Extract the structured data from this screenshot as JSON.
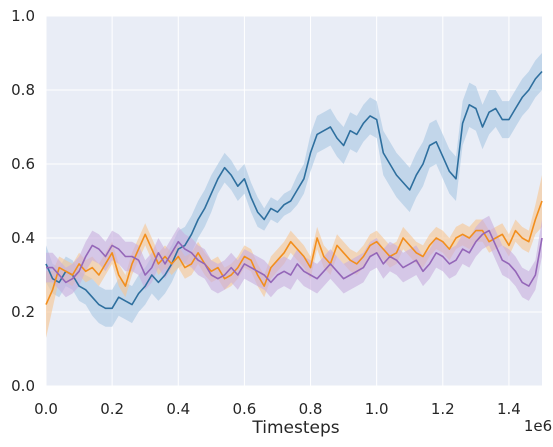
{
  "chart_data": {
    "type": "line",
    "title": "",
    "xlabel": "Timesteps",
    "ylabel": "",
    "x_offset_label": "1e6",
    "xlim": [
      0.0,
      1.5
    ],
    "ylim": [
      0.0,
      1.0
    ],
    "x_ticks": [
      "0.0",
      "0.2",
      "0.4",
      "0.6",
      "0.8",
      "1.0",
      "1.2",
      "1.4"
    ],
    "y_ticks": [
      "0.0",
      "0.2",
      "0.4",
      "0.6",
      "0.8",
      "1.0"
    ],
    "grid": true,
    "background_color": "#e9edf6",
    "grid_color": "#ffffff",
    "legend": "none",
    "series": [
      {
        "color": "#2e6f9e",
        "band_color": "#a9c6e2",
        "x": [
          0.0,
          0.02,
          0.04,
          0.06,
          0.08,
          0.1,
          0.12,
          0.14,
          0.16,
          0.18,
          0.2,
          0.22,
          0.24,
          0.26,
          0.28,
          0.3,
          0.32,
          0.34,
          0.36,
          0.38,
          0.4,
          0.42,
          0.44,
          0.46,
          0.48,
          0.5,
          0.52,
          0.54,
          0.56,
          0.58,
          0.6,
          0.62,
          0.64,
          0.66,
          0.68,
          0.7,
          0.72,
          0.74,
          0.76,
          0.78,
          0.8,
          0.82,
          0.84,
          0.86,
          0.88,
          0.9,
          0.92,
          0.94,
          0.96,
          0.98,
          1.0,
          1.02,
          1.04,
          1.06,
          1.08,
          1.1,
          1.12,
          1.14,
          1.16,
          1.18,
          1.2,
          1.22,
          1.24,
          1.26,
          1.28,
          1.3,
          1.32,
          1.34,
          1.36,
          1.38,
          1.4,
          1.42,
          1.44,
          1.46,
          1.48,
          1.5
        ],
        "y": [
          0.33,
          0.29,
          0.28,
          0.31,
          0.3,
          0.27,
          0.26,
          0.24,
          0.22,
          0.21,
          0.21,
          0.24,
          0.23,
          0.22,
          0.25,
          0.27,
          0.3,
          0.28,
          0.3,
          0.33,
          0.37,
          0.38,
          0.41,
          0.45,
          0.48,
          0.52,
          0.56,
          0.59,
          0.57,
          0.54,
          0.56,
          0.51,
          0.47,
          0.45,
          0.48,
          0.47,
          0.49,
          0.5,
          0.53,
          0.56,
          0.63,
          0.68,
          0.69,
          0.7,
          0.67,
          0.65,
          0.69,
          0.68,
          0.71,
          0.73,
          0.72,
          0.63,
          0.6,
          0.57,
          0.55,
          0.53,
          0.57,
          0.6,
          0.65,
          0.66,
          0.62,
          0.58,
          0.56,
          0.71,
          0.76,
          0.75,
          0.7,
          0.74,
          0.75,
          0.72,
          0.72,
          0.75,
          0.78,
          0.8,
          0.83,
          0.85
        ],
        "band_halfwidth": [
          0.05,
          0.04,
          0.04,
          0.04,
          0.04,
          0.04,
          0.04,
          0.05,
          0.05,
          0.05,
          0.05,
          0.05,
          0.05,
          0.05,
          0.05,
          0.05,
          0.05,
          0.05,
          0.05,
          0.05,
          0.05,
          0.05,
          0.05,
          0.05,
          0.05,
          0.05,
          0.04,
          0.04,
          0.04,
          0.04,
          0.04,
          0.04,
          0.04,
          0.03,
          0.03,
          0.03,
          0.03,
          0.03,
          0.04,
          0.04,
          0.05,
          0.05,
          0.05,
          0.05,
          0.05,
          0.05,
          0.05,
          0.05,
          0.05,
          0.05,
          0.05,
          0.06,
          0.06,
          0.06,
          0.06,
          0.06,
          0.06,
          0.06,
          0.06,
          0.06,
          0.06,
          0.06,
          0.06,
          0.06,
          0.06,
          0.06,
          0.06,
          0.06,
          0.05,
          0.05,
          0.05,
          0.05,
          0.05,
          0.05,
          0.05,
          0.05
        ]
      },
      {
        "color": "#f28e1c",
        "band_color": "#f7c591",
        "x": [
          0.0,
          0.02,
          0.04,
          0.06,
          0.08,
          0.1,
          0.12,
          0.14,
          0.16,
          0.18,
          0.2,
          0.22,
          0.24,
          0.26,
          0.28,
          0.3,
          0.32,
          0.34,
          0.36,
          0.38,
          0.4,
          0.42,
          0.44,
          0.46,
          0.48,
          0.5,
          0.52,
          0.54,
          0.56,
          0.58,
          0.6,
          0.62,
          0.64,
          0.66,
          0.68,
          0.7,
          0.72,
          0.74,
          0.76,
          0.78,
          0.8,
          0.82,
          0.84,
          0.86,
          0.88,
          0.9,
          0.92,
          0.94,
          0.96,
          0.98,
          1.0,
          1.02,
          1.04,
          1.06,
          1.08,
          1.1,
          1.12,
          1.14,
          1.16,
          1.18,
          1.2,
          1.22,
          1.24,
          1.26,
          1.28,
          1.3,
          1.32,
          1.34,
          1.36,
          1.38,
          1.4,
          1.42,
          1.44,
          1.46,
          1.48,
          1.5
        ],
        "y": [
          0.22,
          0.26,
          0.32,
          0.31,
          0.3,
          0.33,
          0.31,
          0.32,
          0.3,
          0.33,
          0.36,
          0.3,
          0.27,
          0.33,
          0.37,
          0.41,
          0.37,
          0.33,
          0.35,
          0.33,
          0.35,
          0.32,
          0.33,
          0.36,
          0.33,
          0.31,
          0.32,
          0.29,
          0.3,
          0.32,
          0.35,
          0.34,
          0.3,
          0.27,
          0.32,
          0.34,
          0.36,
          0.39,
          0.37,
          0.35,
          0.32,
          0.4,
          0.35,
          0.33,
          0.38,
          0.36,
          0.34,
          0.33,
          0.35,
          0.38,
          0.39,
          0.37,
          0.35,
          0.36,
          0.4,
          0.38,
          0.36,
          0.35,
          0.38,
          0.4,
          0.39,
          0.37,
          0.4,
          0.41,
          0.4,
          0.42,
          0.42,
          0.39,
          0.4,
          0.41,
          0.38,
          0.42,
          0.4,
          0.39,
          0.45,
          0.5
        ],
        "band_halfwidth": [
          0.09,
          0.05,
          0.03,
          0.03,
          0.03,
          0.03,
          0.03,
          0.03,
          0.03,
          0.03,
          0.03,
          0.03,
          0.03,
          0.03,
          0.03,
          0.03,
          0.03,
          0.03,
          0.03,
          0.03,
          0.03,
          0.03,
          0.03,
          0.03,
          0.03,
          0.03,
          0.03,
          0.03,
          0.03,
          0.03,
          0.03,
          0.03,
          0.03,
          0.03,
          0.03,
          0.03,
          0.03,
          0.03,
          0.03,
          0.03,
          0.03,
          0.03,
          0.03,
          0.03,
          0.03,
          0.03,
          0.03,
          0.03,
          0.03,
          0.03,
          0.03,
          0.03,
          0.03,
          0.03,
          0.03,
          0.03,
          0.03,
          0.03,
          0.03,
          0.03,
          0.03,
          0.03,
          0.03,
          0.03,
          0.03,
          0.03,
          0.03,
          0.03,
          0.03,
          0.03,
          0.03,
          0.03,
          0.03,
          0.03,
          0.04,
          0.07
        ]
      },
      {
        "color": "#9466b8",
        "band_color": "#c8aedd",
        "x": [
          0.0,
          0.02,
          0.04,
          0.06,
          0.08,
          0.1,
          0.12,
          0.14,
          0.16,
          0.18,
          0.2,
          0.22,
          0.24,
          0.26,
          0.28,
          0.3,
          0.32,
          0.34,
          0.36,
          0.38,
          0.4,
          0.42,
          0.44,
          0.46,
          0.48,
          0.5,
          0.52,
          0.54,
          0.56,
          0.58,
          0.6,
          0.62,
          0.64,
          0.66,
          0.68,
          0.7,
          0.72,
          0.74,
          0.76,
          0.78,
          0.8,
          0.82,
          0.84,
          0.86,
          0.88,
          0.9,
          0.92,
          0.94,
          0.96,
          0.98,
          1.0,
          1.02,
          1.04,
          1.06,
          1.08,
          1.1,
          1.12,
          1.14,
          1.16,
          1.18,
          1.2,
          1.22,
          1.24,
          1.26,
          1.28,
          1.3,
          1.32,
          1.34,
          1.36,
          1.38,
          1.4,
          1.42,
          1.44,
          1.46,
          1.48,
          1.5
        ],
        "y": [
          0.32,
          0.32,
          0.3,
          0.28,
          0.29,
          0.31,
          0.35,
          0.38,
          0.37,
          0.35,
          0.38,
          0.37,
          0.35,
          0.35,
          0.34,
          0.3,
          0.32,
          0.36,
          0.33,
          0.36,
          0.39,
          0.37,
          0.36,
          0.34,
          0.33,
          0.3,
          0.29,
          0.3,
          0.32,
          0.3,
          0.33,
          0.32,
          0.31,
          0.3,
          0.28,
          0.3,
          0.31,
          0.3,
          0.33,
          0.31,
          0.3,
          0.29,
          0.31,
          0.33,
          0.31,
          0.29,
          0.3,
          0.31,
          0.32,
          0.35,
          0.36,
          0.33,
          0.35,
          0.34,
          0.32,
          0.33,
          0.34,
          0.31,
          0.33,
          0.36,
          0.35,
          0.33,
          0.34,
          0.37,
          0.36,
          0.39,
          0.41,
          0.42,
          0.38,
          0.34,
          0.33,
          0.31,
          0.28,
          0.27,
          0.3,
          0.4
        ],
        "band_halfwidth": [
          0.04,
          0.04,
          0.04,
          0.04,
          0.04,
          0.04,
          0.04,
          0.04,
          0.04,
          0.04,
          0.04,
          0.04,
          0.04,
          0.04,
          0.04,
          0.04,
          0.04,
          0.04,
          0.04,
          0.04,
          0.04,
          0.04,
          0.04,
          0.04,
          0.04,
          0.04,
          0.04,
          0.04,
          0.04,
          0.04,
          0.04,
          0.04,
          0.04,
          0.04,
          0.04,
          0.04,
          0.04,
          0.04,
          0.04,
          0.04,
          0.04,
          0.04,
          0.04,
          0.04,
          0.04,
          0.04,
          0.04,
          0.04,
          0.04,
          0.04,
          0.04,
          0.04,
          0.04,
          0.04,
          0.04,
          0.04,
          0.04,
          0.04,
          0.04,
          0.04,
          0.04,
          0.04,
          0.04,
          0.04,
          0.04,
          0.04,
          0.04,
          0.04,
          0.04,
          0.04,
          0.04,
          0.04,
          0.04,
          0.04,
          0.04,
          0.05
        ]
      }
    ]
  }
}
